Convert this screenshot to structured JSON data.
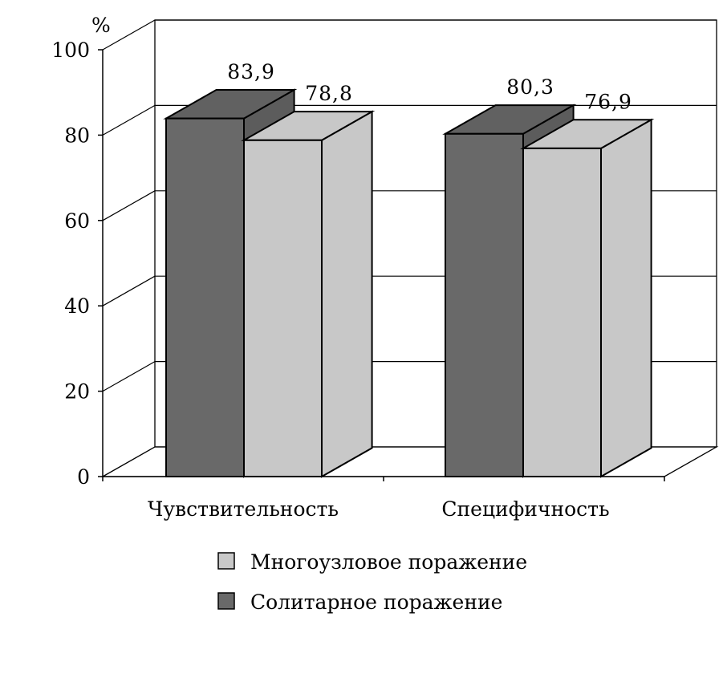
{
  "chart_data": {
    "type": "bar",
    "categories": [
      "Чувствительность",
      "Специфичность"
    ],
    "series": [
      {
        "name": "Солитарное поражение",
        "values": [
          83.9,
          80.3
        ],
        "labels": [
          "83,9",
          "80,3"
        ],
        "color": "#696969"
      },
      {
        "name": "Многоузловое поражение",
        "values": [
          78.8,
          76.9
        ],
        "labels": [
          "78,8",
          "76,9"
        ],
        "color": "#c8c8c8"
      }
    ],
    "ylim": [
      0,
      100
    ],
    "yticks": [
      "0",
      "20",
      "40",
      "60",
      "80",
      "100"
    ],
    "ylabel": "%",
    "grid": true,
    "legend_position": "bottom",
    "legend_order": [
      1,
      0
    ]
  }
}
